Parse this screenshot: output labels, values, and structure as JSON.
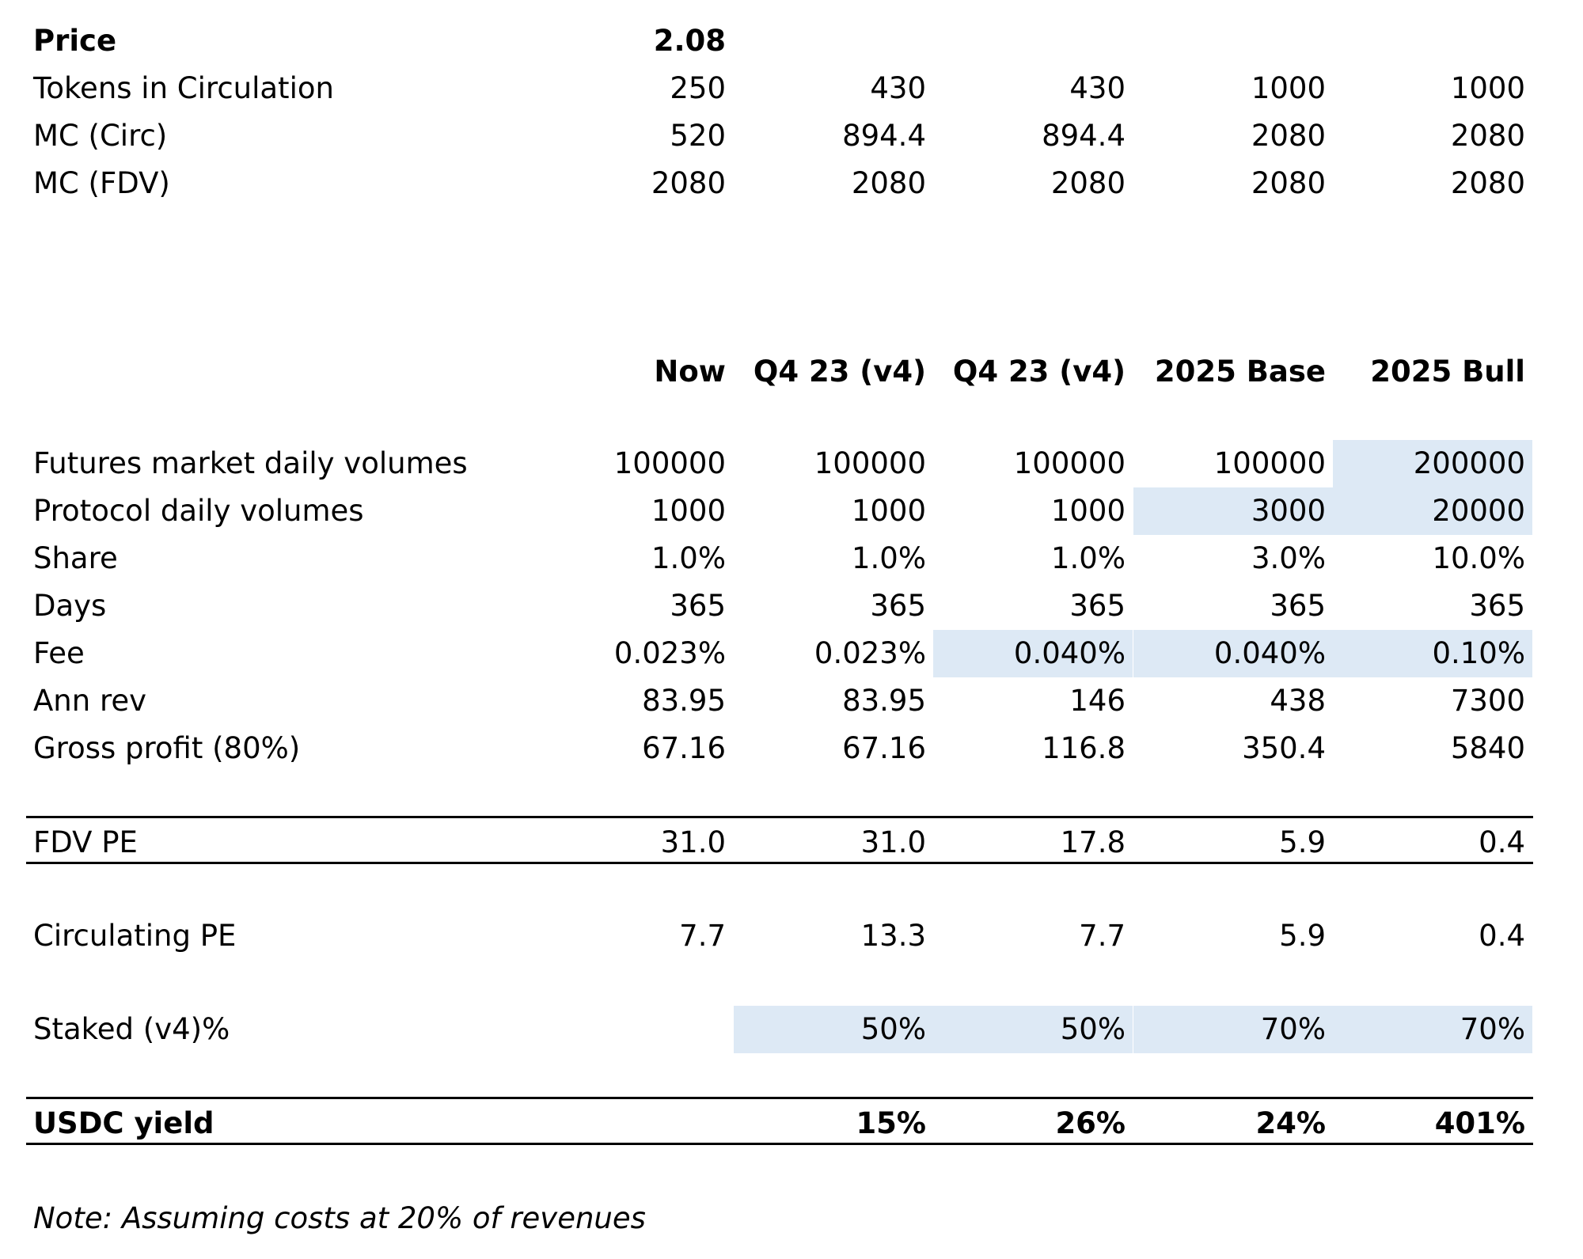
{
  "summary": {
    "price": {
      "label": "Price",
      "values": [
        "2.08",
        "",
        "",
        "",
        ""
      ]
    },
    "tokens": {
      "label": "Tokens in Circulation",
      "values": [
        "250",
        "430",
        "430",
        "1000",
        "1000"
      ]
    },
    "mc_circ": {
      "label": "MC (Circ)",
      "values": [
        "520",
        "894.4",
        "894.4",
        "2080",
        "2080"
      ]
    },
    "mc_fdv": {
      "label": "MC (FDV)",
      "values": [
        "2080",
        "2080",
        "2080",
        "2080",
        "2080"
      ]
    }
  },
  "headers": [
    "Now",
    "Q4 23 (v4)",
    "Q4 23 (v4)",
    "2025 Base",
    "2025 Bull"
  ],
  "rows": {
    "futures": {
      "label": "Futures market daily volumes",
      "values": [
        "100000",
        "100000",
        "100000",
        "100000",
        "200000"
      ]
    },
    "protocol": {
      "label": "Protocol daily volumes",
      "values": [
        "1000",
        "1000",
        "1000",
        "3000",
        "20000"
      ]
    },
    "share": {
      "label": "Share",
      "values": [
        "1.0%",
        "1.0%",
        "1.0%",
        "3.0%",
        "10.0%"
      ]
    },
    "days": {
      "label": "Days",
      "values": [
        "365",
        "365",
        "365",
        "365",
        "365"
      ]
    },
    "fee": {
      "label": "Fee",
      "values": [
        "0.023%",
        "0.023%",
        "0.040%",
        "0.040%",
        "0.10%"
      ]
    },
    "ann_rev": {
      "label": "Ann rev",
      "values": [
        "83.95",
        "83.95",
        "146",
        "438",
        "7300"
      ]
    },
    "gross_profit": {
      "label": "Gross profit (80%)",
      "values": [
        "67.16",
        "67.16",
        "116.8",
        "350.4",
        "5840"
      ]
    },
    "fdv_pe": {
      "label": "FDV PE",
      "values": [
        "31.0",
        "31.0",
        "17.8",
        "5.9",
        "0.4"
      ]
    },
    "circ_pe": {
      "label": "Circulating PE",
      "values": [
        "7.7",
        "13.3",
        "7.7",
        "5.9",
        "0.4"
      ]
    },
    "staked": {
      "label": "Staked (v4)%",
      "values": [
        "",
        "50%",
        "50%",
        "70%",
        "70%"
      ]
    },
    "usdc_yield": {
      "label": "USDC yield",
      "values": [
        "",
        "15%",
        "26%",
        "24%",
        "401%"
      ]
    }
  },
  "note": "Note: Assuming costs at 20% of revenues",
  "colors": {
    "input_highlight": "#dde9f5",
    "text": "#000000",
    "rule": "#000000"
  }
}
